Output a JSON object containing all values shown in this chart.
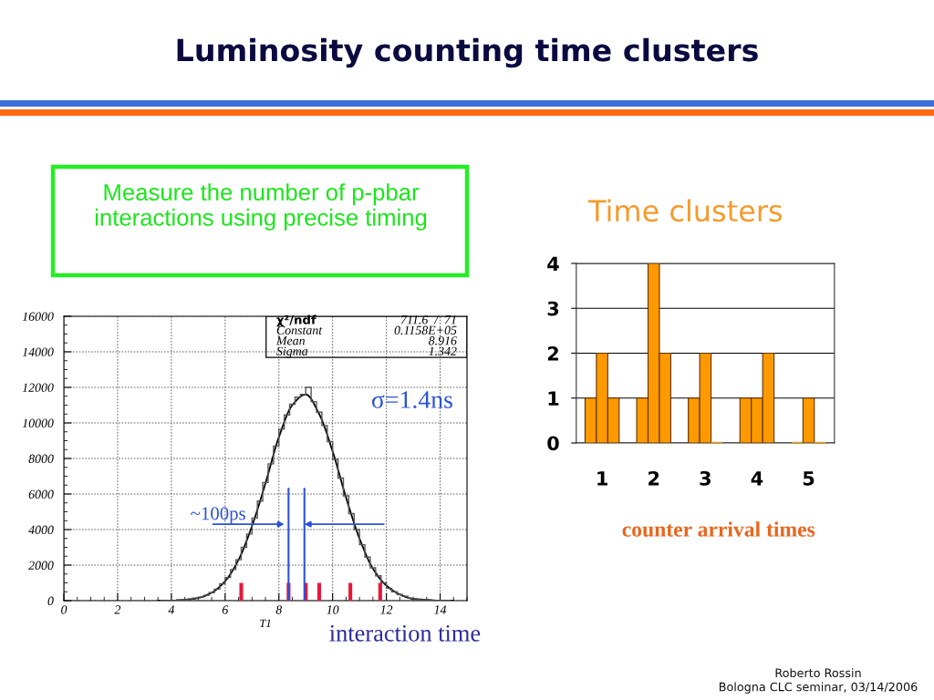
{
  "chart_data": [
    {
      "type": "other",
      "title": "Luminosity counting time clusters",
      "annotations": [
        "Measure the number of p-pbar\ninteractions using precise timing",
        "Roberto Rossin\nBologna CLC seminar, 03/14/2006"
      ]
    },
    {
      "type": "histogram",
      "xlabel": "T1",
      "color": "#555555",
      "bins": [
        3.6,
        3.8,
        4,
        4.2,
        4.4,
        4.6,
        4.8,
        5,
        5.2,
        5.4,
        5.6,
        5.8,
        6,
        6.2,
        6.4,
        6.6,
        6.8,
        7,
        7.2,
        7.4,
        7.6,
        7.8,
        8,
        8.2,
        8.4,
        8.6,
        8.8,
        9,
        9.2,
        9.4,
        9.6,
        9.8,
        10,
        10.2,
        10.4,
        10.6,
        10.8,
        11,
        11.2,
        11.4,
        11.6,
        11.8,
        12,
        12.2,
        12.4,
        12.6,
        12.8,
        13,
        13.2,
        13.4,
        13.6,
        13.8,
        14,
        14.2,
        14.4
      ],
      "values": [
        0,
        0,
        0,
        50,
        50,
        100,
        150,
        200,
        300,
        450,
        650,
        950,
        1300,
        1750,
        2300,
        3000,
        3750,
        4650,
        5600,
        6650,
        7700,
        8700,
        9650,
        10450,
        11050,
        11450,
        11600,
        12000,
        11200,
        10600,
        9850,
        8950,
        7950,
        6900,
        5900,
        4900,
        4000,
        3150,
        2450,
        1850,
        1400,
        1000,
        700,
        500,
        350,
        250,
        150,
        100,
        50,
        50,
        0,
        0,
        0,
        0
      ],
      "series": [
        {
          "type": "line",
          "color": "#000000",
          "x": [
            3.5,
            4,
            4.5,
            5,
            5.5,
            6,
            6.5,
            7,
            7.5,
            8,
            8.5,
            9,
            9.5,
            10,
            10.5,
            11,
            11.5,
            12,
            12.5,
            13,
            13.5,
            14,
            14.5
          ],
          "values": [
            0,
            0,
            50,
            150,
            450,
            1100,
            2300,
            4200,
            6600,
            9200,
            11000,
            11600,
            10500,
            8400,
            5800,
            3500,
            1800,
            850,
            350,
            100,
            50,
            0,
            0
          ]
        },
        {
          "type": "bar",
          "color": "#e8173a",
          "x": [
            6.6,
            8.36,
            9.0,
            9.5,
            10.66,
            11.77
          ],
          "values": [
            1000,
            1000,
            1000,
            1000,
            1000,
            1000
          ]
        },
        {
          "type": "line",
          "color": "#2a52d8",
          "x": [
            8.36,
            8.36
          ],
          "values": [
            0,
            6300
          ]
        },
        {
          "type": "line",
          "color": "#2a52d8",
          "x": [
            8.95,
            8.95
          ],
          "values": [
            0,
            6300
          ]
        }
      ],
      "xlim": [
        0,
        15
      ],
      "ylim": [
        0,
        16000
      ],
      "xticks": [
        0,
        2,
        4,
        6,
        8,
        10,
        12,
        14
      ],
      "yticks": [
        0,
        2000,
        4000,
        6000,
        8000,
        10000,
        12000,
        14000,
        16000
      ],
      "grid": true,
      "annotations": [
        "χ²/ndf",
        "711.6  /  71",
        "Constant",
        "0.1158E+05",
        "Mean",
        "8.916",
        "Sigma",
        "1.342",
        "σ=1.4ns",
        {
          "text": "~100ps",
          "x": 8.2,
          "y": 4300
        },
        "interaction time"
      ]
    },
    {
      "type": "bar",
      "title": "Time clusters",
      "categories": [
        "1",
        "2",
        "3",
        "4",
        "5"
      ],
      "series": [
        {
          "color": "#ff9900",
          "values": [
            1,
            1,
            1,
            1,
            0
          ]
        },
        {
          "color": "#ff9900",
          "values": [
            2,
            4,
            2,
            1,
            1
          ]
        },
        {
          "color": "#ff9900",
          "values": [
            1,
            2,
            0,
            2,
            0
          ]
        }
      ],
      "ylim": [
        0,
        4
      ],
      "yticks": [
        0,
        1,
        2,
        3,
        4
      ],
      "grid": "y",
      "annotations": [
        "counter arrival times"
      ]
    }
  ]
}
